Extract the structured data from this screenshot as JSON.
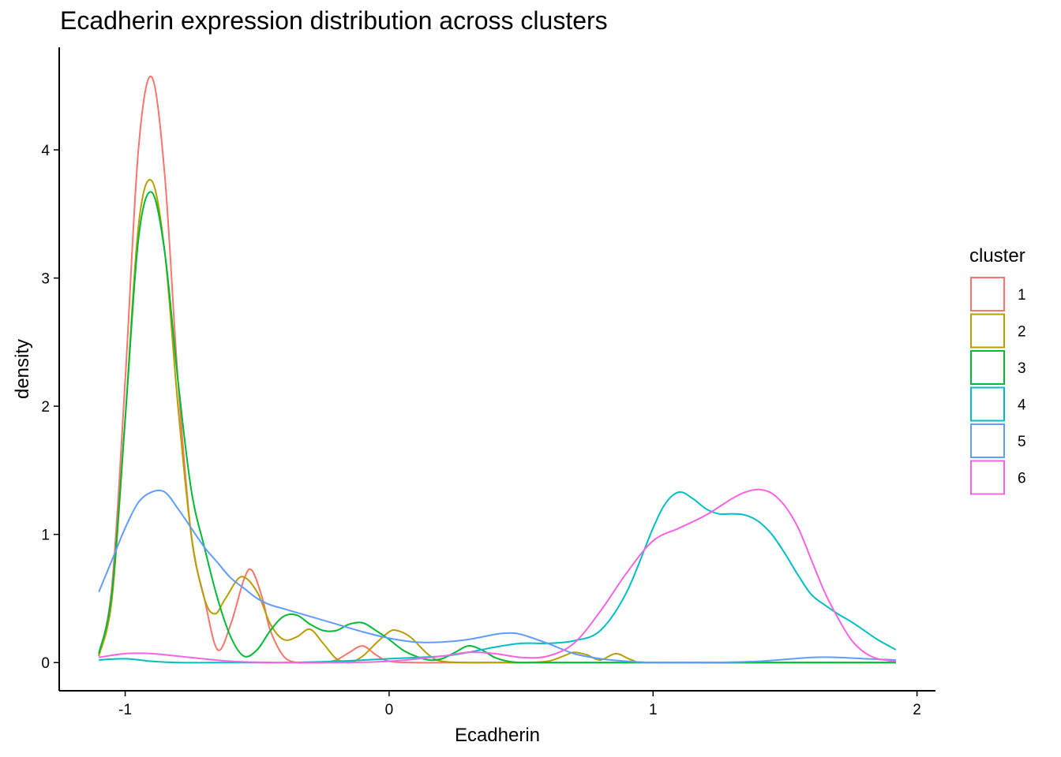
{
  "chart_data": {
    "type": "line",
    "title": "Ecadherin expression distribution across clusters",
    "xlabel": "Ecadherin",
    "ylabel": "density",
    "xlim": [
      -1.25,
      2.07
    ],
    "ylim": [
      -0.22,
      4.8
    ],
    "xticks": [
      -1,
      0,
      1,
      2
    ],
    "xtick_labels": [
      "-1",
      "0",
      "1",
      "2"
    ],
    "yticks": [
      0,
      1,
      2,
      3,
      4
    ],
    "ytick_labels": [
      "0",
      "1",
      "2",
      "3",
      "4"
    ],
    "grid": false,
    "legend": {
      "title": "cluster",
      "position": "right"
    },
    "series": [
      {
        "name": "1",
        "color": "#F8766D",
        "x": [
          -1.1,
          -1.05,
          -1.0,
          -0.95,
          -0.9,
          -0.85,
          -0.8,
          -0.75,
          -0.7,
          -0.65,
          -0.6,
          -0.55,
          -0.52,
          -0.48,
          -0.45,
          -0.4,
          -0.35,
          -0.3,
          -0.25,
          -0.2,
          -0.15,
          -0.1,
          -0.05,
          0.0,
          0.1,
          0.3,
          0.6,
          1.0,
          1.5,
          1.92
        ],
        "y": [
          0.05,
          0.6,
          2.2,
          4.0,
          4.57,
          3.8,
          2.2,
          1.0,
          0.5,
          0.1,
          0.3,
          0.65,
          0.72,
          0.5,
          0.25,
          0.05,
          0.0,
          0.0,
          0.0,
          0.02,
          0.08,
          0.13,
          0.06,
          0.01,
          0.0,
          0.0,
          0.0,
          0.0,
          0.0,
          0.0
        ]
      },
      {
        "name": "2",
        "color": "#B79F00",
        "x": [
          -1.1,
          -1.05,
          -1.0,
          -0.95,
          -0.9,
          -0.85,
          -0.8,
          -0.75,
          -0.7,
          -0.66,
          -0.62,
          -0.56,
          -0.5,
          -0.45,
          -0.4,
          -0.35,
          -0.3,
          -0.25,
          -0.2,
          -0.15,
          -0.1,
          -0.05,
          0.0,
          0.03,
          0.08,
          0.15,
          0.2,
          0.3,
          0.4,
          0.5,
          0.6,
          0.66,
          0.7,
          0.75,
          0.8,
          0.86,
          0.92,
          1.0,
          1.5,
          1.92
        ],
        "y": [
          0.05,
          0.5,
          1.9,
          3.4,
          3.76,
          3.2,
          2.0,
          1.0,
          0.5,
          0.38,
          0.5,
          0.67,
          0.55,
          0.3,
          0.18,
          0.2,
          0.26,
          0.15,
          0.03,
          0.0,
          0.05,
          0.15,
          0.24,
          0.25,
          0.2,
          0.06,
          0.01,
          0.0,
          0.0,
          0.0,
          0.01,
          0.05,
          0.08,
          0.06,
          0.02,
          0.07,
          0.02,
          0.0,
          0.0,
          0.0
        ]
      },
      {
        "name": "3",
        "color": "#00BA38",
        "x": [
          -1.1,
          -1.05,
          -1.0,
          -0.95,
          -0.9,
          -0.85,
          -0.8,
          -0.75,
          -0.7,
          -0.65,
          -0.6,
          -0.55,
          -0.5,
          -0.45,
          -0.4,
          -0.35,
          -0.3,
          -0.25,
          -0.2,
          -0.15,
          -0.1,
          -0.05,
          0.0,
          0.05,
          0.1,
          0.15,
          0.2,
          0.25,
          0.3,
          0.35,
          0.4,
          0.45,
          0.5,
          0.6,
          1.0,
          1.5,
          1.92
        ],
        "y": [
          0.07,
          0.55,
          1.9,
          3.3,
          3.67,
          3.2,
          2.2,
          1.35,
          0.9,
          0.5,
          0.2,
          0.05,
          0.1,
          0.25,
          0.36,
          0.37,
          0.3,
          0.25,
          0.25,
          0.3,
          0.31,
          0.25,
          0.18,
          0.1,
          0.05,
          0.02,
          0.03,
          0.08,
          0.13,
          0.1,
          0.04,
          0.01,
          0.0,
          0.0,
          0.0,
          0.0,
          0.0
        ]
      },
      {
        "name": "4",
        "color": "#00BFC4",
        "x": [
          -1.1,
          -1.0,
          -0.9,
          -0.8,
          -0.6,
          -0.4,
          -0.2,
          0.0,
          0.2,
          0.3,
          0.4,
          0.5,
          0.6,
          0.7,
          0.8,
          0.9,
          1.0,
          1.05,
          1.1,
          1.15,
          1.2,
          1.25,
          1.3,
          1.35,
          1.4,
          1.45,
          1.5,
          1.55,
          1.6,
          1.65,
          1.7,
          1.75,
          1.8,
          1.85,
          1.92
        ],
        "y": [
          0.02,
          0.03,
          0.01,
          0.0,
          0.0,
          0.0,
          0.01,
          0.03,
          0.05,
          0.08,
          0.12,
          0.15,
          0.15,
          0.17,
          0.25,
          0.55,
          1.05,
          1.25,
          1.33,
          1.28,
          1.2,
          1.16,
          1.16,
          1.15,
          1.1,
          1.0,
          0.85,
          0.68,
          0.53,
          0.45,
          0.38,
          0.32,
          0.25,
          0.18,
          0.1
        ]
      },
      {
        "name": "5",
        "color": "#619CFF",
        "x": [
          -1.1,
          -1.05,
          -1.0,
          -0.95,
          -0.9,
          -0.85,
          -0.8,
          -0.75,
          -0.7,
          -0.65,
          -0.6,
          -0.55,
          -0.5,
          -0.45,
          -0.4,
          -0.3,
          -0.2,
          -0.1,
          0.0,
          0.1,
          0.2,
          0.3,
          0.4,
          0.45,
          0.5,
          0.6,
          0.7,
          0.8,
          0.9,
          1.0,
          1.2,
          1.4,
          1.6,
          1.7,
          1.8,
          1.92
        ],
        "y": [
          0.55,
          0.8,
          1.05,
          1.25,
          1.33,
          1.33,
          1.2,
          1.05,
          0.9,
          0.78,
          0.66,
          0.58,
          0.5,
          0.45,
          0.42,
          0.36,
          0.3,
          0.24,
          0.19,
          0.16,
          0.16,
          0.18,
          0.22,
          0.23,
          0.22,
          0.15,
          0.07,
          0.03,
          0.01,
          0.0,
          0.0,
          0.01,
          0.04,
          0.04,
          0.03,
          0.02
        ]
      },
      {
        "name": "6",
        "color": "#F564E3",
        "x": [
          -1.1,
          -1.0,
          -0.9,
          -0.8,
          -0.6,
          -0.4,
          -0.2,
          0.0,
          0.2,
          0.3,
          0.4,
          0.5,
          0.6,
          0.7,
          0.8,
          0.9,
          1.0,
          1.1,
          1.2,
          1.3,
          1.35,
          1.4,
          1.45,
          1.5,
          1.55,
          1.6,
          1.65,
          1.7,
          1.75,
          1.8,
          1.85,
          1.92
        ],
        "y": [
          0.04,
          0.07,
          0.07,
          0.05,
          0.01,
          0.0,
          0.0,
          0.01,
          0.05,
          0.08,
          0.07,
          0.04,
          0.05,
          0.15,
          0.4,
          0.7,
          0.95,
          1.05,
          1.15,
          1.28,
          1.33,
          1.35,
          1.32,
          1.22,
          1.05,
          0.8,
          0.55,
          0.35,
          0.18,
          0.08,
          0.03,
          0.01
        ]
      }
    ]
  }
}
